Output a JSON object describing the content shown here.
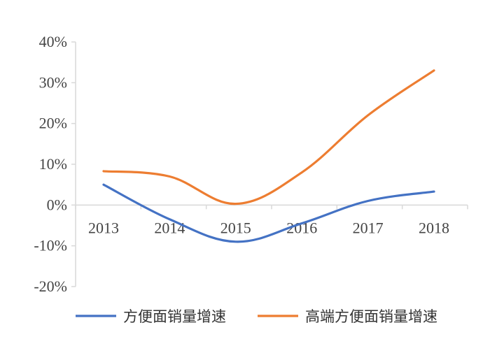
{
  "chart_data": {
    "type": "line",
    "x": [
      "2013",
      "2014",
      "2015",
      "2016",
      "2017",
      "2018"
    ],
    "y_ticks": [
      "40%",
      "30%",
      "20%",
      "10%",
      "0%",
      "-10%",
      "-20%"
    ],
    "ylim": [
      -20,
      40
    ],
    "y_unit": "%",
    "grid": false,
    "legend_position": "bottom",
    "series": [
      {
        "name": "方便面销量增速",
        "values": [
          5.0,
          -3.5,
          -9.0,
          -4.5,
          1.0,
          3.3
        ],
        "color": "#4472C4"
      },
      {
        "name": "高端方便面销量增速",
        "values": [
          8.3,
          7.0,
          0.3,
          8.0,
          22.0,
          33.0
        ],
        "color": "#ED7D31"
      }
    ]
  }
}
